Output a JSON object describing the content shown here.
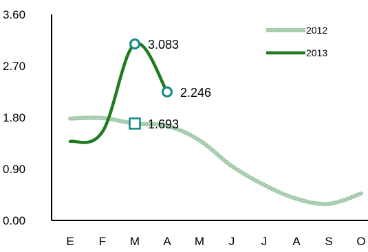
{
  "chart_data": {
    "type": "line",
    "categories": [
      "E",
      "F",
      "M",
      "A",
      "M",
      "J",
      "J",
      "A",
      "S",
      "O"
    ],
    "ylim": [
      0,
      3.6
    ],
    "yticks": [
      "0.00",
      "0.90",
      "1.80",
      "2.70",
      "3.60"
    ],
    "ytick_values": [
      0,
      0.9,
      1.8,
      2.7,
      3.6
    ],
    "grid": false,
    "legend_position": "top-right",
    "series": [
      {
        "name": "2012",
        "color": "#9cc7a6",
        "style": "textured",
        "values": [
          1.78,
          1.79,
          1.693,
          1.65,
          1.4,
          0.95,
          0.62,
          0.38,
          0.29,
          0.47
        ]
      },
      {
        "name": "2013",
        "color": "#1e7a1e",
        "style": "solid",
        "values": [
          1.38,
          1.55,
          3.083,
          2.246,
          null,
          null,
          null,
          null,
          null,
          null
        ]
      }
    ],
    "annotations": [
      {
        "series": 1,
        "index": 2,
        "label": "3.083",
        "marker": "circle",
        "color": "#1c8a8a"
      },
      {
        "series": 1,
        "index": 3,
        "label": "2.246",
        "marker": "circle",
        "color": "#1c8a8a"
      },
      {
        "series": 0,
        "index": 2,
        "label": "1.693",
        "marker": "square",
        "color": "#1c8a8a"
      }
    ]
  }
}
